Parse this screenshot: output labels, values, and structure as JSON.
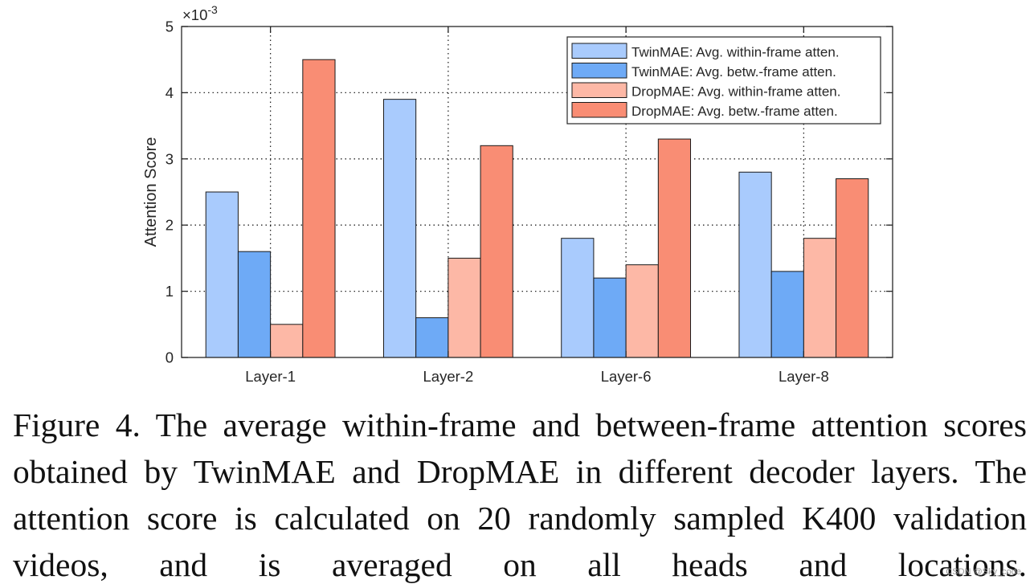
{
  "chart_data": {
    "type": "bar",
    "title": "",
    "xlabel": "",
    "ylabel": "Attention Score",
    "y_multiplier": "×10",
    "y_multiplier_exp": "-3",
    "ylim": [
      0,
      5
    ],
    "yticks": [
      "0",
      "1",
      "2",
      "3",
      "4",
      "5"
    ],
    "grid": true,
    "legend_position": "top-right",
    "categories": [
      "Layer-1",
      "Layer-2",
      "Layer-6",
      "Layer-8"
    ],
    "series": [
      {
        "name": "TwinMAE: Avg. within-frame atten.",
        "color": "#a9cbfd",
        "values": [
          2.5,
          3.9,
          1.8,
          2.8
        ]
      },
      {
        "name": "TwinMAE: Avg. betw.-frame atten.",
        "color": "#6eaaf6",
        "values": [
          1.6,
          0.6,
          1.2,
          1.3
        ]
      },
      {
        "name": "DropMAE: Avg. within-frame atten.",
        "color": "#fdb8a6",
        "values": [
          0.5,
          1.5,
          1.4,
          1.8
        ]
      },
      {
        "name": "DropMAE: Avg. betw.-frame atten.",
        "color": "#f98d74",
        "values": [
          4.5,
          3.2,
          3.3,
          2.7
        ]
      }
    ]
  },
  "caption": {
    "label": "Figure 4.",
    "text": "The average within-frame and between-frame attention scores obtained by TwinMAE and DropMAE in different decoder layers. The attention score is calculated on 20 randomly sampled K400 validation videos, and is averaged on all heads and locations."
  },
  "watermark": "CSDN @Sky_code"
}
